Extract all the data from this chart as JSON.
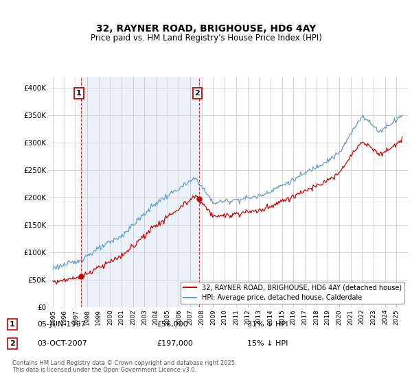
{
  "title": "32, RAYNER ROAD, BRIGHOUSE, HD6 4AY",
  "subtitle": "Price paid vs. HM Land Registry's House Price Index (HPI)",
  "legend_label_red": "32, RAYNER ROAD, BRIGHOUSE, HD6 4AY (detached house)",
  "legend_label_blue": "HPI: Average price, detached house, Calderdale",
  "purchase1_date": "05-JUN-1997",
  "purchase1_price": 56000,
  "purchase1_note": "31% ↓ HPI",
  "purchase2_date": "03-OCT-2007",
  "purchase2_price": 197000,
  "purchase2_note": "15% ↓ HPI",
  "footer": "Contains HM Land Registry data © Crown copyright and database right 2025.\nThis data is licensed under the Open Government Licence v3.0.",
  "ylim": [
    0,
    420000
  ],
  "yticks": [
    0,
    50000,
    100000,
    150000,
    200000,
    250000,
    300000,
    350000,
    400000
  ],
  "red_color": "#cc0000",
  "blue_color": "#6699cc",
  "blue_fill": "#dce9f5",
  "vline_color": "#cc0000",
  "background_color": "#ffffff",
  "grid_color": "#cccccc",
  "t1": 1997.43,
  "t2": 2007.77
}
